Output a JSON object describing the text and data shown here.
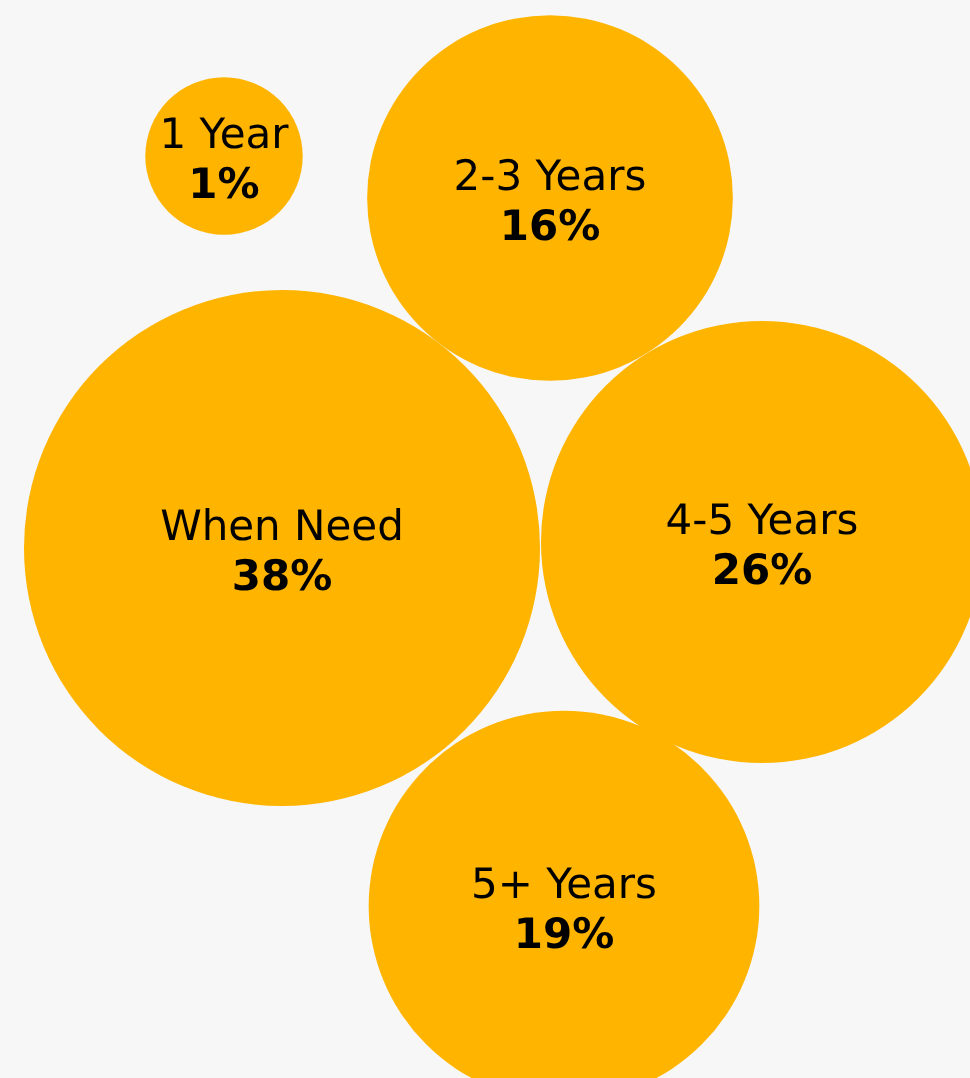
{
  "chart_data": {
    "type": "other",
    "categories": [
      "1 Year",
      "2-3 Years",
      "When Need",
      "4-5 Years",
      "5+ Years"
    ],
    "values": [
      1,
      16,
      38,
      26,
      19
    ],
    "value_labels": [
      "1%",
      "16%",
      "38%",
      "26%",
      "19%"
    ],
    "color": "#ffb400"
  }
}
